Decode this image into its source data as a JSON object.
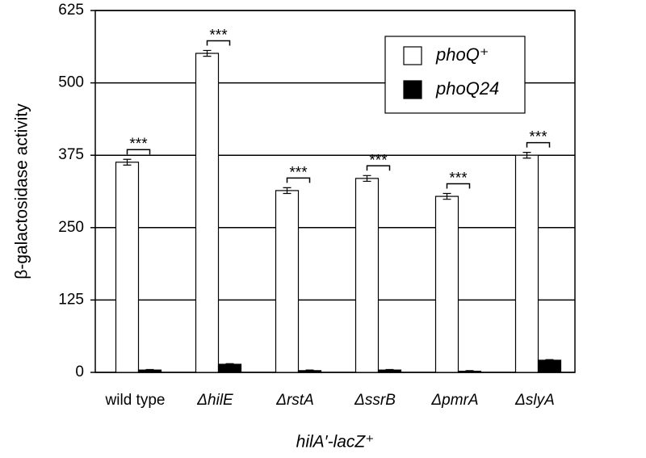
{
  "chart_data": {
    "type": "bar",
    "y_label": "β-galactosidase activity",
    "x_label": "hilA′-lacZ⁺",
    "categories": [
      "wild type",
      "ΔhilE",
      "ΔrstA",
      "ΔssrB",
      "ΔpmrA",
      "ΔslyA"
    ],
    "series": [
      {
        "name": "phoQ⁺",
        "color": "#ffffff",
        "values": [
          363,
          551,
          314,
          335,
          304,
          375
        ],
        "errors": [
          5,
          5,
          5,
          5,
          5,
          5
        ]
      },
      {
        "name": "phoQ24",
        "color": "#000000",
        "values": [
          4,
          14,
          3,
          4,
          2,
          21
        ],
        "errors": [
          1,
          1,
          1,
          1,
          1,
          1
        ]
      }
    ],
    "significance": [
      "***",
      "***",
      "***",
      "***",
      "***",
      "***"
    ],
    "ylim": [
      0,
      625
    ],
    "yticks": [
      0,
      125,
      250,
      375,
      500,
      625
    ],
    "grid": true,
    "legend": "upper right"
  }
}
